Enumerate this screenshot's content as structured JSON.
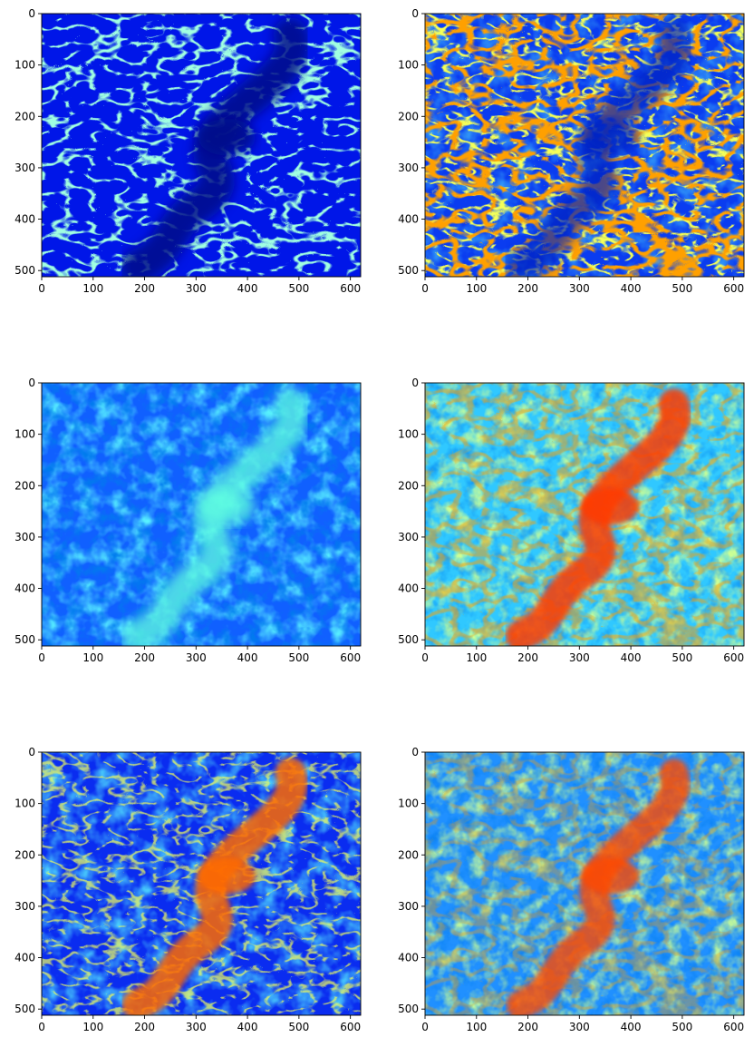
{
  "chart_data": [
    {
      "type": "heatmap",
      "colormap": "jet",
      "x_ticks": [
        "0",
        "100",
        "200",
        "300",
        "400",
        "500",
        "600"
      ],
      "y_ticks": [
        "0",
        "100",
        "200",
        "300",
        "400",
        "500"
      ],
      "xlim": [
        0,
        620
      ],
      "ylim": [
        512,
        0
      ],
      "value_range": "low",
      "pattern": "thin bright edge lines on deep blue, dark blue channel from top-right to lower-left"
    },
    {
      "type": "heatmap",
      "colormap": "jet",
      "x_ticks": [
        "0",
        "100",
        "200",
        "300",
        "400",
        "500",
        "600"
      ],
      "y_ticks": [
        "0",
        "100",
        "200",
        "300",
        "400",
        "500"
      ],
      "xlim": [
        0,
        620
      ],
      "ylim": [
        512,
        0
      ],
      "value_range": "mixed",
      "pattern": "red and yellow edges on blue, strongest near left border and top-left"
    },
    {
      "type": "heatmap",
      "colormap": "jet",
      "x_ticks": [
        "0",
        "100",
        "200",
        "300",
        "400",
        "500",
        "600"
      ],
      "y_ticks": [
        "0",
        "100",
        "200",
        "300",
        "400",
        "500"
      ],
      "xlim": [
        0,
        620
      ],
      "ylim": [
        512,
        0
      ],
      "value_range": "low-mid",
      "pattern": "cyan patches on blue, bright diagonal channel"
    },
    {
      "type": "heatmap",
      "colormap": "jet",
      "x_ticks": [
        "0",
        "100",
        "200",
        "300",
        "400",
        "500",
        "600"
      ],
      "y_ticks": [
        "0",
        "100",
        "200",
        "300",
        "400",
        "500"
      ],
      "xlim": [
        0,
        620
      ],
      "ylim": [
        512,
        0
      ],
      "value_range": "mid-high",
      "pattern": "green-yellow texture with red diagonal channel"
    },
    {
      "type": "heatmap",
      "colormap": "jet",
      "x_ticks": [
        "0",
        "100",
        "200",
        "300",
        "400",
        "500",
        "600"
      ],
      "y_ticks": [
        "0",
        "100",
        "200",
        "300",
        "400",
        "500"
      ],
      "xlim": [
        0,
        620
      ],
      "ylim": [
        512,
        0
      ],
      "value_range": "low-high",
      "pattern": "blue background with orange-red diagonal channel"
    },
    {
      "type": "heatmap",
      "colormap": "jet",
      "x_ticks": [
        "0",
        "100",
        "200",
        "300",
        "400",
        "500",
        "600"
      ],
      "y_ticks": [
        "0",
        "100",
        "200",
        "300",
        "400",
        "500"
      ],
      "xlim": [
        0,
        620
      ],
      "ylim": [
        512,
        0
      ],
      "value_range": "mid-high",
      "pattern": "cyan-green texture with orange-red diagonal channel"
    }
  ]
}
